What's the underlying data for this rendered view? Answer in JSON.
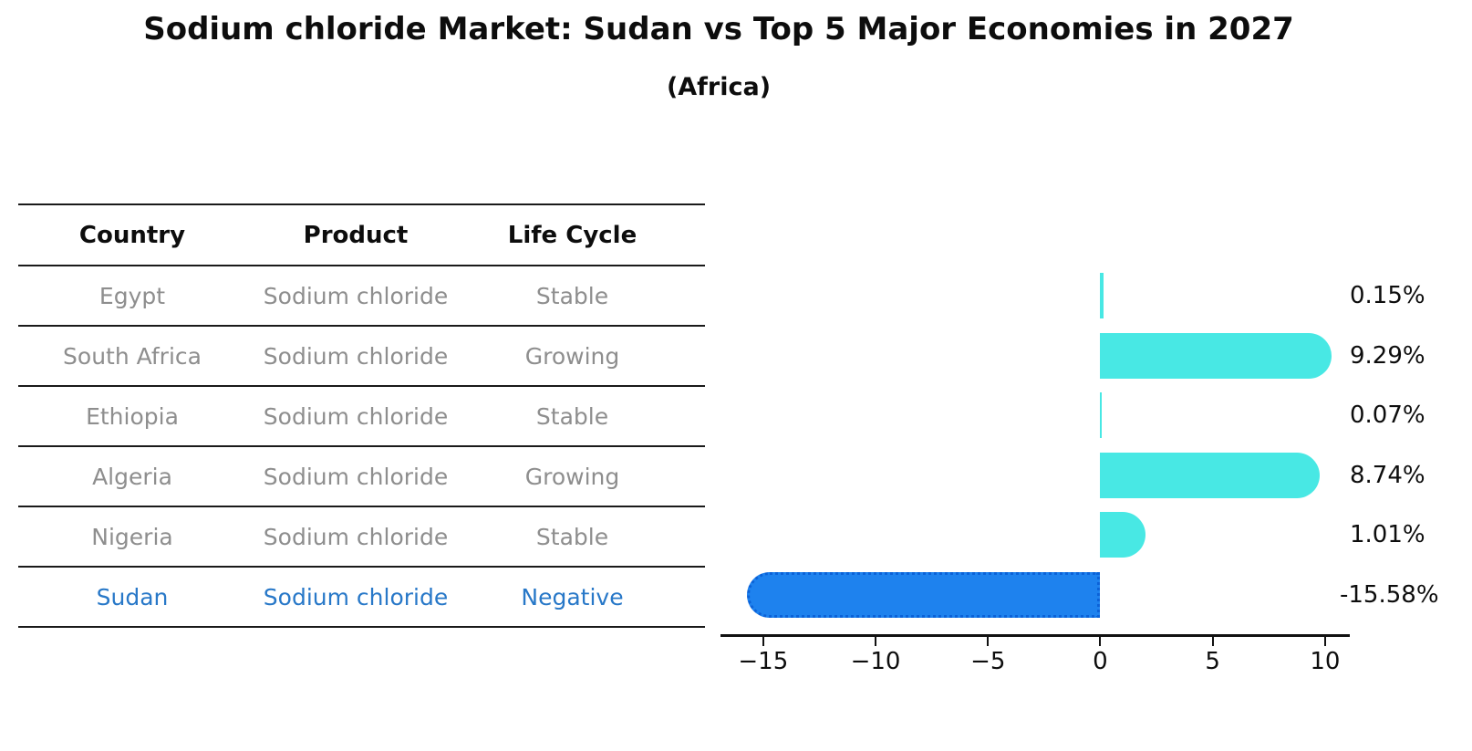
{
  "title": "Sodium chloride Market: Sudan vs Top 5 Major Economies in 2027",
  "subtitle": "(Africa)",
  "table": {
    "headers": [
      "Country",
      "Product",
      "Life Cycle"
    ],
    "rows": [
      {
        "country": "Egypt",
        "product": "Sodium chloride",
        "life_cycle": "Stable",
        "highlight": false
      },
      {
        "country": "South Africa",
        "product": "Sodium chloride",
        "life_cycle": "Growing",
        "highlight": false
      },
      {
        "country": "Ethiopia",
        "product": "Sodium chloride",
        "life_cycle": "Stable",
        "highlight": false
      },
      {
        "country": "Algeria",
        "product": "Sodium chloride",
        "life_cycle": "Growing",
        "highlight": false
      },
      {
        "country": "Nigeria",
        "product": "Sodium chloride",
        "life_cycle": "Stable",
        "highlight": false
      },
      {
        "country": "Sudan",
        "product": "Sodium chloride",
        "life_cycle": "Negative",
        "highlight": true
      }
    ]
  },
  "chart_data": {
    "type": "bar",
    "orientation": "horizontal",
    "title": "Sodium chloride Market: Sudan vs Top 5 Major Economies in 2027",
    "subtitle": "(Africa)",
    "categories": [
      "Egypt",
      "South Africa",
      "Ethiopia",
      "Algeria",
      "Nigeria",
      "Sudan"
    ],
    "values": [
      0.15,
      9.29,
      0.07,
      8.74,
      1.01,
      -15.58
    ],
    "value_labels": [
      "0.15%",
      "9.29%",
      "0.07%",
      "8.74%",
      "1.01%",
      "-15.58%"
    ],
    "x_ticks": [
      -15,
      -10,
      -5,
      0,
      5,
      10
    ],
    "x_tick_labels": [
      "−15",
      "−10",
      "−5",
      "0",
      "5",
      "10"
    ],
    "xlim": [
      -16.9,
      11.1
    ],
    "grid": false,
    "legend": false,
    "highlight_category": "Sudan",
    "bar_color_positive": "#48e8e4",
    "bar_color_negative": "#1e82ee",
    "negative_bar_border": "#0b62d8"
  },
  "colors": {
    "highlight_text": "#2878c8",
    "muted_text": "#8e8e8e",
    "text": "#111111",
    "line": "#1a1a1a",
    "background": "#ffffff"
  }
}
